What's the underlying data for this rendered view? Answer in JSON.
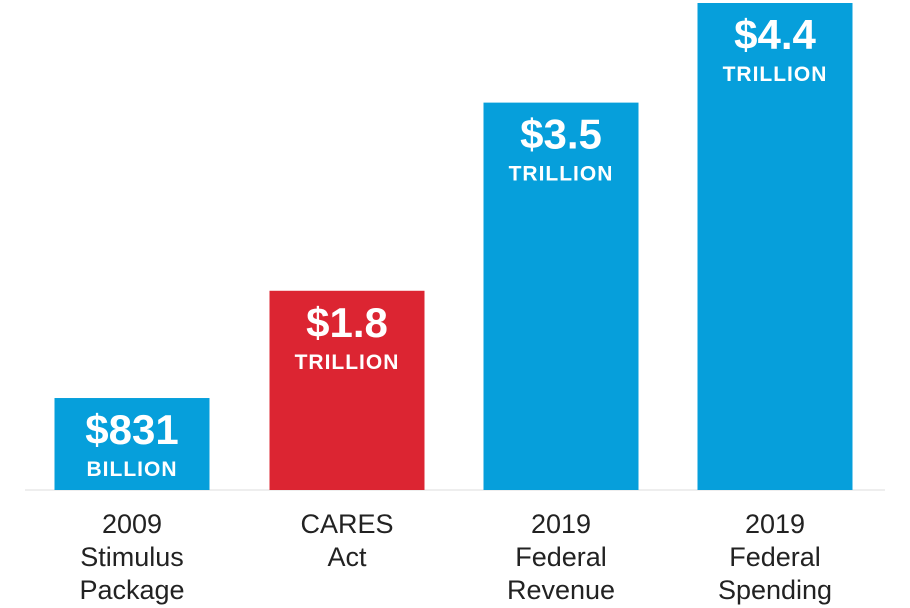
{
  "chart_data": {
    "type": "bar",
    "title": "",
    "xlabel": "",
    "ylabel": "",
    "categories": [
      "2009 Stimulus Package",
      "CARES Act",
      "2019 Federal Revenue",
      "2019 Federal Spending"
    ],
    "category_lines": [
      [
        "2009",
        "Stimulus",
        "Package"
      ],
      [
        "CARES",
        "Act"
      ],
      [
        "2019",
        "Federal",
        "Revenue"
      ],
      [
        "2019",
        "Federal",
        "Spending"
      ]
    ],
    "values": [
      0.831,
      1.8,
      3.5,
      4.4
    ],
    "value_unit": "trillion USD",
    "value_labels": [
      {
        "amount": "$831",
        "unit": "BILLION"
      },
      {
        "amount": "$1.8",
        "unit": "TRILLION"
      },
      {
        "amount": "$3.5",
        "unit": "TRILLION"
      },
      {
        "amount": "$4.4",
        "unit": "TRILLION"
      }
    ],
    "colors": [
      "#069fdb",
      "#dc2532",
      "#069fdb",
      "#069fdb"
    ],
    "ylim": [
      0,
      4.4
    ],
    "grid": false,
    "legend": "none"
  }
}
